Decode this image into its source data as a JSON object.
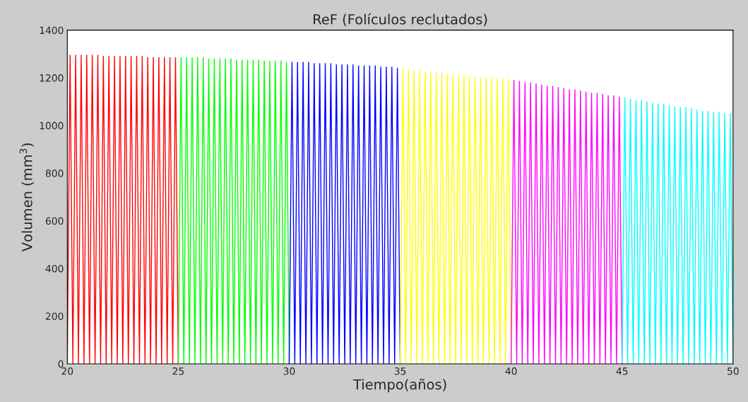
{
  "chart_data": {
    "type": "line",
    "title": "ReF (Folículos reclutados)",
    "xlabel": "Tiempo(años)",
    "ylabel": "Volumen (mm$^{3}$)",
    "xlim": [
      20,
      50
    ],
    "xticks": [
      20,
      25,
      30,
      35,
      40,
      45,
      50
    ],
    "ylim": [
      0,
      1400
    ],
    "yticks": [
      0,
      200,
      400,
      600,
      800,
      1000,
      1200,
      1400
    ],
    "grid": false,
    "marker": "none",
    "line_style": "solid",
    "series": [
      {
        "color": "#ff0000",
        "x": [
          20,
          20.125,
          20.25,
          20.375,
          20.5,
          20.625,
          20.75,
          20.875,
          21,
          21.125,
          21.25,
          21.375,
          21.5,
          21.625,
          21.75,
          21.875,
          22,
          22.125,
          22.25,
          22.375,
          22.5,
          22.625,
          22.75,
          22.875,
          23,
          23.125,
          23.25,
          23.375,
          23.5,
          23.625,
          23.75,
          23.875,
          24,
          24.125,
          24.25,
          24.375,
          24.5,
          24.625,
          24.75,
          24.875,
          25
        ],
        "values": [
          0,
          1295,
          0,
          1295,
          0,
          1295,
          0,
          1295,
          0,
          1295,
          0,
          1295,
          0,
          1290,
          0,
          1290,
          0,
          1290,
          0,
          1290,
          0,
          1290,
          0,
          1290,
          0,
          1290,
          0,
          1290,
          0,
          1285,
          0,
          1285,
          0,
          1285,
          0,
          1285,
          0,
          1285,
          0,
          1285,
          0
        ]
      },
      {
        "color": "#00ff00",
        "x": [
          25,
          25.125,
          25.25,
          25.375,
          25.5,
          25.625,
          25.75,
          25.875,
          26,
          26.125,
          26.25,
          26.375,
          26.5,
          26.625,
          26.75,
          26.875,
          27,
          27.125,
          27.25,
          27.375,
          27.5,
          27.625,
          27.75,
          27.875,
          28,
          28.125,
          28.25,
          28.375,
          28.5,
          28.625,
          28.75,
          28.875,
          29,
          29.125,
          29.25,
          29.375,
          29.5,
          29.625,
          29.75,
          29.875,
          30
        ],
        "values": [
          0,
          1285,
          0,
          1285,
          0,
          1285,
          0,
          1285,
          0,
          1285,
          0,
          1280,
          0,
          1280,
          0,
          1280,
          0,
          1280,
          0,
          1280,
          0,
          1275,
          0,
          1275,
          0,
          1275,
          0,
          1275,
          0,
          1275,
          0,
          1270,
          0,
          1270,
          0,
          1270,
          0,
          1270,
          0,
          1265,
          0
        ]
      },
      {
        "color": "#0000ff",
        "x": [
          30,
          30.125,
          30.25,
          30.375,
          30.5,
          30.625,
          30.75,
          30.875,
          31,
          31.125,
          31.25,
          31.375,
          31.5,
          31.625,
          31.75,
          31.875,
          32,
          32.125,
          32.25,
          32.375,
          32.5,
          32.625,
          32.75,
          32.875,
          33,
          33.125,
          33.25,
          33.375,
          33.5,
          33.625,
          33.75,
          33.875,
          34,
          34.125,
          34.25,
          34.375,
          34.5,
          34.625,
          34.75,
          34.875,
          35
        ],
        "values": [
          0,
          1265,
          0,
          1265,
          0,
          1265,
          0,
          1265,
          0,
          1260,
          0,
          1260,
          0,
          1260,
          0,
          1260,
          0,
          1255,
          0,
          1255,
          0,
          1255,
          0,
          1255,
          0,
          1250,
          0,
          1250,
          0,
          1250,
          0,
          1250,
          0,
          1245,
          0,
          1245,
          0,
          1245,
          0,
          1240,
          0
        ]
      },
      {
        "color": "#ffff00",
        "x": [
          35,
          35.125,
          35.25,
          35.375,
          35.5,
          35.625,
          35.75,
          35.875,
          36,
          36.125,
          36.25,
          36.375,
          36.5,
          36.625,
          36.75,
          36.875,
          37,
          37.125,
          37.25,
          37.375,
          37.5,
          37.625,
          37.75,
          37.875,
          38,
          38.125,
          38.25,
          38.375,
          38.5,
          38.625,
          38.75,
          38.875,
          39,
          39.125,
          39.25,
          39.375,
          39.5,
          39.625,
          39.75,
          39.875,
          40
        ],
        "values": [
          0,
          1235,
          0,
          1235,
          0,
          1230,
          0,
          1230,
          0,
          1225,
          0,
          1225,
          0,
          1220,
          0,
          1220,
          0,
          1215,
          0,
          1215,
          0,
          1210,
          0,
          1210,
          0,
          1205,
          0,
          1205,
          0,
          1200,
          0,
          1200,
          0,
          1200,
          0,
          1195,
          0,
          1195,
          0,
          1195,
          0
        ]
      },
      {
        "color": "#ff00ff",
        "x": [
          40,
          40.125,
          40.25,
          40.375,
          40.5,
          40.625,
          40.75,
          40.875,
          41,
          41.125,
          41.25,
          41.375,
          41.5,
          41.625,
          41.75,
          41.875,
          42,
          42.125,
          42.25,
          42.375,
          42.5,
          42.625,
          42.75,
          42.875,
          43,
          43.125,
          43.25,
          43.375,
          43.5,
          43.625,
          43.75,
          43.875,
          44,
          44.125,
          44.25,
          44.375,
          44.5,
          44.625,
          44.75,
          44.875,
          45
        ],
        "values": [
          0,
          1190,
          0,
          1185,
          0,
          1180,
          0,
          1180,
          0,
          1175,
          0,
          1170,
          0,
          1165,
          0,
          1165,
          0,
          1160,
          0,
          1155,
          0,
          1150,
          0,
          1150,
          0,
          1145,
          0,
          1140,
          0,
          1135,
          0,
          1135,
          0,
          1130,
          0,
          1125,
          0,
          1125,
          0,
          1120,
          0
        ]
      },
      {
        "color": "#00ffff",
        "x": [
          45,
          45.125,
          45.25,
          45.375,
          45.5,
          45.625,
          45.75,
          45.875,
          46,
          46.125,
          46.25,
          46.375,
          46.5,
          46.625,
          46.75,
          46.875,
          47,
          47.125,
          47.25,
          47.375,
          47.5,
          47.625,
          47.75,
          47.875,
          48,
          48.125,
          48.25,
          48.375,
          48.5,
          48.625,
          48.75,
          48.875,
          49,
          49.125,
          49.25,
          49.375,
          49.5,
          49.625,
          49.75,
          49.875,
          50
        ],
        "values": [
          0,
          1115,
          0,
          1110,
          0,
          1105,
          0,
          1105,
          0,
          1100,
          0,
          1095,
          0,
          1090,
          0,
          1090,
          0,
          1085,
          0,
          1080,
          0,
          1075,
          0,
          1075,
          0,
          1070,
          0,
          1065,
          0,
          1060,
          0,
          1060,
          0,
          1055,
          0,
          1055,
          0,
          1050,
          0,
          1050,
          0
        ]
      }
    ]
  }
}
